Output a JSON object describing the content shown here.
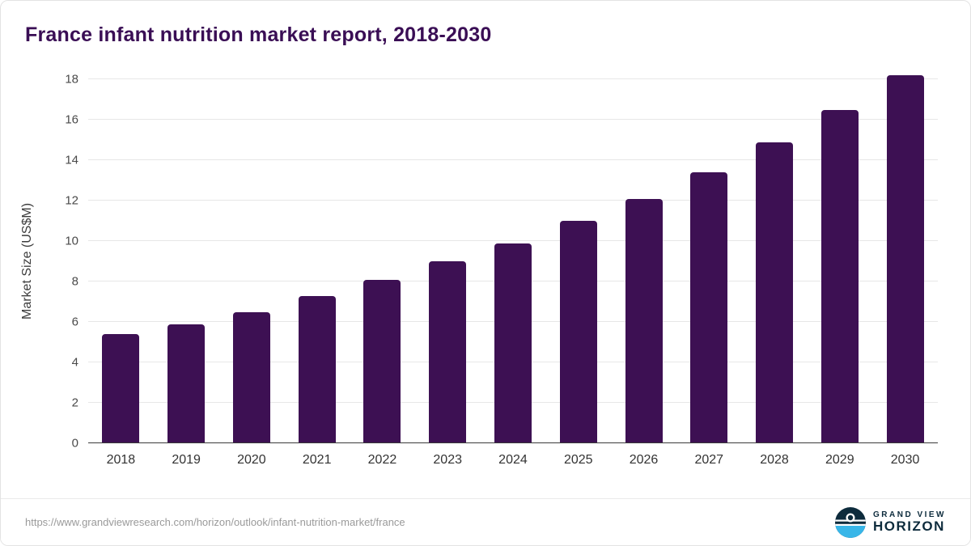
{
  "title": "France infant nutrition market report, 2018-2030",
  "chart_data": {
    "type": "bar",
    "title": "France infant nutrition market report, 2018-2030",
    "categories": [
      "2018",
      "2019",
      "2020",
      "2021",
      "2022",
      "2023",
      "2024",
      "2025",
      "2026",
      "2027",
      "2028",
      "2029",
      "2030"
    ],
    "values": [
      5.4,
      5.9,
      6.5,
      7.3,
      8.1,
      9.0,
      9.9,
      11.0,
      12.1,
      13.4,
      14.9,
      16.5,
      18.2
    ],
    "xlabel": "",
    "ylabel": "Market Size (US$M)",
    "ylim": [
      0,
      18
    ],
    "ytick_step": 2,
    "grid": true,
    "legend": "none",
    "bar_color": "#3d1053"
  },
  "footer": {
    "source_url": "https://www.grandviewresearch.com/horizon/outlook/infant-nutrition-market/france",
    "logo": {
      "line1": "GRAND VIEW",
      "line2": "HORIZON",
      "icon": "horizon-sun-circle-icon"
    }
  },
  "colors": {
    "title": "#3a0e55",
    "bar": "#3d1053",
    "gridline": "#e7e7e7",
    "axis": "#3a3a3a",
    "logo_navy": "#0d2b3c",
    "logo_blue": "#38b6e8"
  }
}
